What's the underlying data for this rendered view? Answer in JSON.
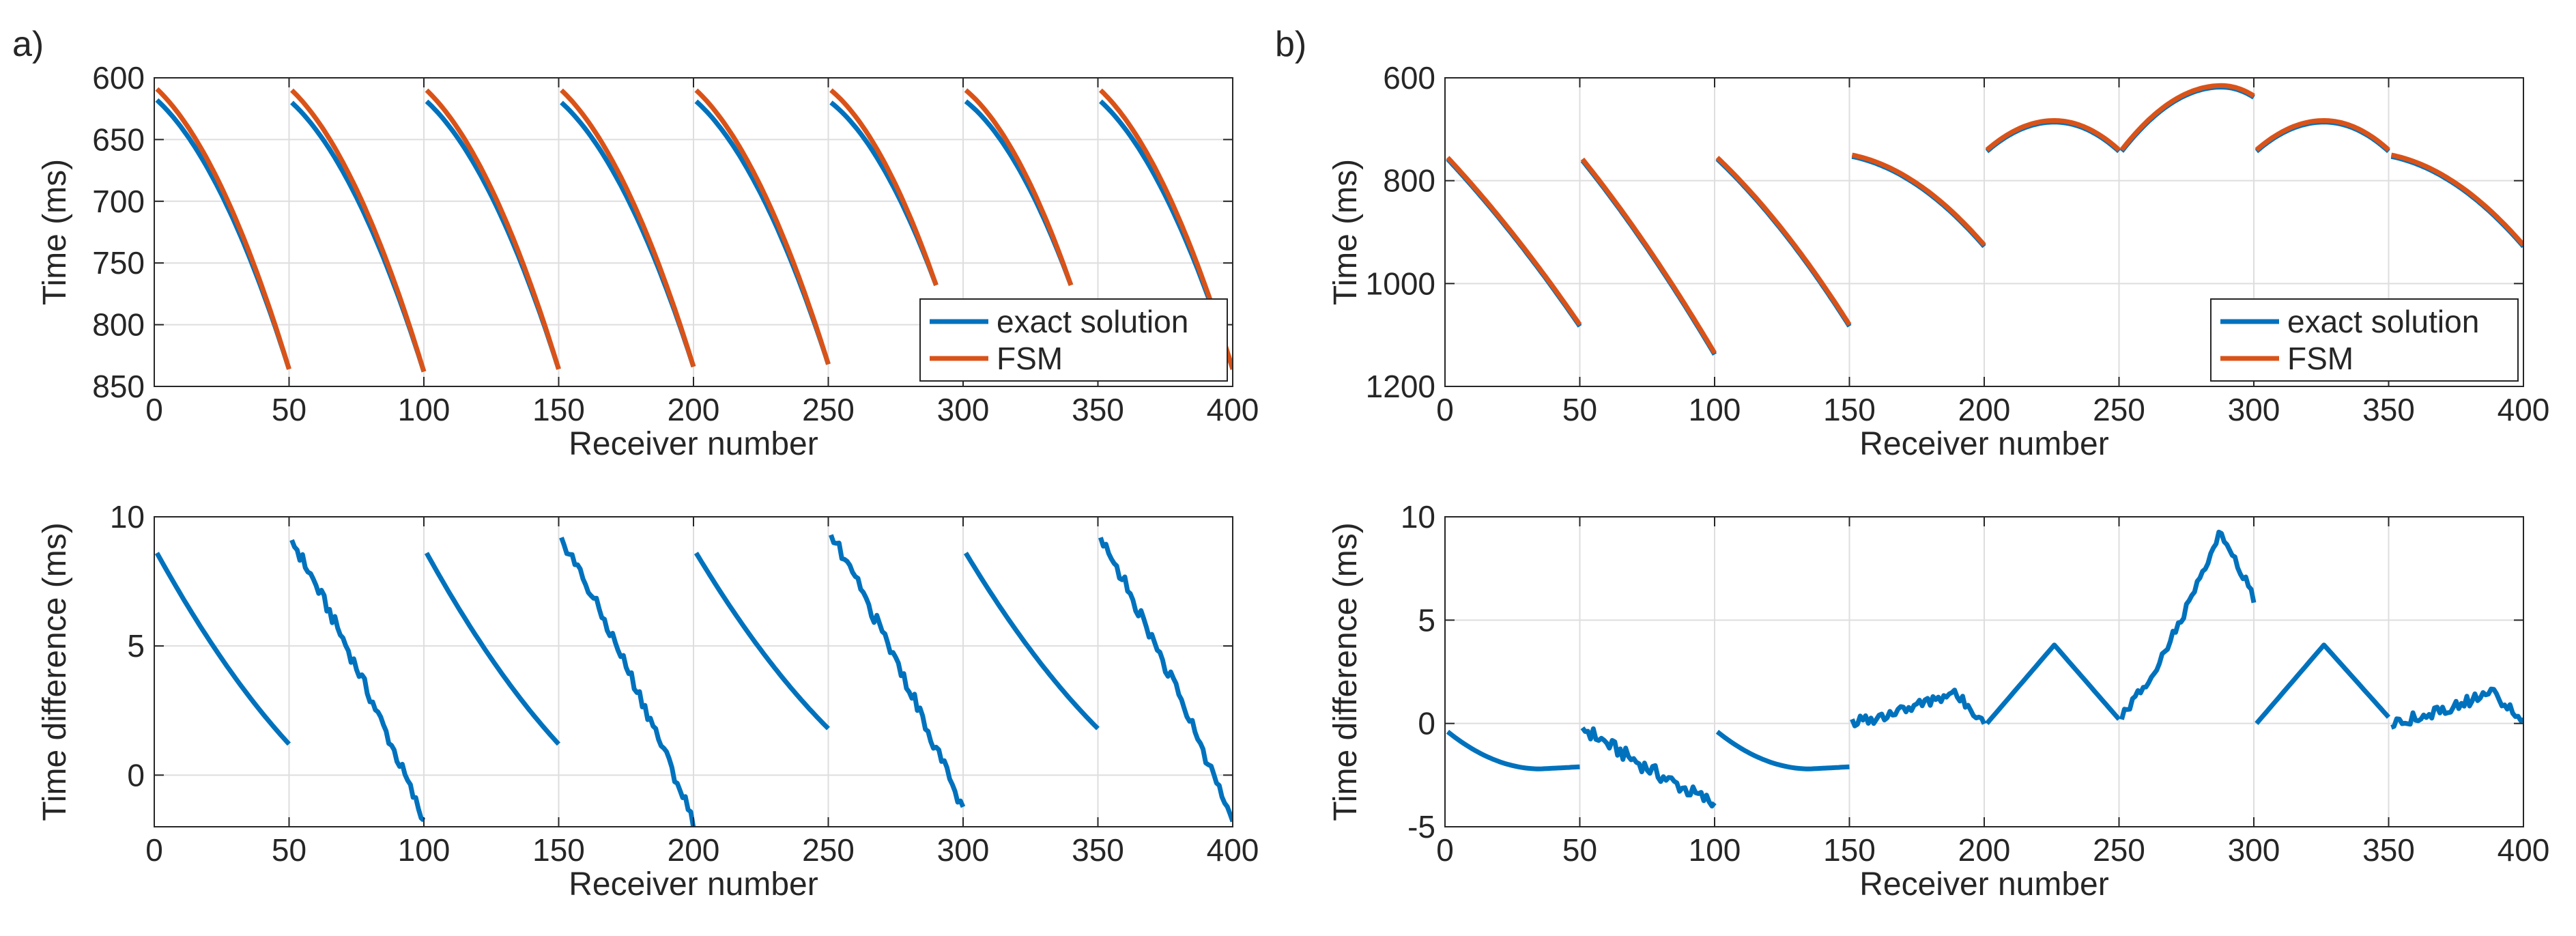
{
  "panel_labels": [
    "a)",
    "b)"
  ],
  "legend": {
    "entries": [
      "exact solution",
      "FSM"
    ]
  },
  "colors": {
    "exact": "#0072bd",
    "fsm": "#d95319",
    "grid": "#dedede",
    "axis": "#262626"
  },
  "chart_data": [
    {
      "id": "a_top",
      "type": "line",
      "xlabel": "Receiver number",
      "ylabel": "Time (ms)",
      "xlim": [
        0,
        400
      ],
      "ylim": [
        600,
        850
      ],
      "y_reversed": true,
      "xticks": [
        0,
        50,
        100,
        150,
        200,
        250,
        300,
        350,
        400
      ],
      "yticks": [
        600,
        650,
        700,
        750,
        800,
        850
      ],
      "grid": true,
      "legend_position": "bottom-right",
      "segments": [
        {
          "x0": 1,
          "x1": 50,
          "exact": [
            618,
            836
          ],
          "fsm": [
            609,
            836
          ]
        },
        {
          "x0": 51,
          "x1": 100,
          "exact": [
            620,
            838
          ],
          "fsm": [
            610,
            838
          ]
        },
        {
          "x0": 101,
          "x1": 150,
          "exact": [
            619,
            836
          ],
          "fsm": [
            610,
            836
          ]
        },
        {
          "x0": 151,
          "x1": 200,
          "exact": [
            620,
            834
          ],
          "fsm": [
            610,
            834
          ]
        },
        {
          "x0": 201,
          "x1": 250,
          "exact": [
            619,
            832
          ],
          "fsm": [
            610,
            832
          ]
        },
        {
          "x0": 251,
          "x1": 290,
          "exact": [
            620,
            768
          ],
          "fsm": [
            610,
            768
          ]
        },
        {
          "x0": 301,
          "x1": 340,
          "exact": [
            619,
            768
          ],
          "fsm": [
            610,
            768
          ]
        },
        {
          "x0": 351,
          "x1": 400,
          "exact": [
            619,
            836
          ],
          "fsm": [
            610,
            836
          ]
        }
      ]
    },
    {
      "id": "a_bottom",
      "type": "line",
      "xlabel": "Receiver number",
      "ylabel": "Time difference (ms)",
      "xlim": [
        0,
        400
      ],
      "ylim": [
        -2,
        10
      ],
      "y_reversed": false,
      "xticks": [
        0,
        50,
        100,
        150,
        200,
        250,
        300,
        350,
        400
      ],
      "yticks": [
        0,
        5,
        10
      ],
      "grid": true,
      "segments": [
        {
          "x0": 1,
          "x1": 50,
          "y0": 8.6,
          "y1": 1.2,
          "shape": "smooth"
        },
        {
          "x0": 51,
          "x1": 100,
          "y0": 9.1,
          "y1": -1.8,
          "shape": "noisy"
        },
        {
          "x0": 101,
          "x1": 150,
          "y0": 8.6,
          "y1": 1.2,
          "shape": "smooth"
        },
        {
          "x0": 151,
          "x1": 200,
          "y0": 9.2,
          "y1": -1.8,
          "shape": "noisy"
        },
        {
          "x0": 201,
          "x1": 250,
          "y0": 8.6,
          "y1": 1.8,
          "shape": "smooth"
        },
        {
          "x0": 251,
          "x1": 300,
          "y0": 9.3,
          "y1": -1.4,
          "shape": "noisy"
        },
        {
          "x0": 301,
          "x1": 350,
          "y0": 8.6,
          "y1": 1.8,
          "shape": "smooth"
        },
        {
          "x0": 351,
          "x1": 400,
          "y0": 9.2,
          "y1": -1.8,
          "shape": "noisy"
        }
      ]
    },
    {
      "id": "b_top",
      "type": "line",
      "xlabel": "Receiver number",
      "ylabel": "Time (ms)",
      "xlim": [
        0,
        400
      ],
      "ylim": [
        600,
        1200
      ],
      "y_reversed": true,
      "xticks": [
        0,
        50,
        100,
        150,
        200,
        250,
        300,
        350,
        400
      ],
      "yticks": [
        600,
        800,
        1000,
        1200
      ],
      "grid": true,
      "legend_position": "bottom-right",
      "segments": [
        {
          "x0": 1,
          "x1": 50,
          "y0": 755,
          "y1": 1080,
          "curv": 0.15
        },
        {
          "x0": 51,
          "x1": 100,
          "y0": 758,
          "y1": 1135,
          "curv": 0.15
        },
        {
          "x0": 101,
          "x1": 150,
          "y0": 755,
          "y1": 1080,
          "curv": 0.25
        },
        {
          "x0": 151,
          "x1": 200,
          "y0": 750,
          "y1": 925,
          "curv": 0.7
        },
        {
          "x0": 201,
          "x1": 250,
          "y0": 740,
          "y1": 740,
          "peak": 683,
          "px": 226
        },
        {
          "x0": 251,
          "x1": 300,
          "y0": 740,
          "y1": 635,
          "peak": 615,
          "px": 288
        },
        {
          "x0": 301,
          "x1": 350,
          "y0": 740,
          "y1": 740,
          "peak": 683,
          "px": 326
        },
        {
          "x0": 351,
          "x1": 400,
          "y0": 750,
          "y1": 925,
          "curv": 0.7
        }
      ]
    },
    {
      "id": "b_bottom",
      "type": "line",
      "xlabel": "Receiver number",
      "ylabel": "Time difference (ms)",
      "xlim": [
        0,
        400
      ],
      "ylim": [
        -5,
        10
      ],
      "y_reversed": false,
      "xticks": [
        0,
        50,
        100,
        150,
        200,
        250,
        300,
        350,
        400
      ],
      "yticks": [
        -5,
        0,
        5,
        10
      ],
      "grid": true,
      "segments": [
        {
          "x0": 1,
          "x1": 50,
          "kind": "dip",
          "y0": -0.4,
          "y1": -2.1,
          "ymin": -2.2
        },
        {
          "x0": 51,
          "x1": 100,
          "kind": "noisylin",
          "y0": -0.2,
          "y1": -3.9
        },
        {
          "x0": 101,
          "x1": 150,
          "kind": "dip",
          "y0": -0.4,
          "y1": -2.1,
          "ymin": -2.2
        },
        {
          "x0": 151,
          "x1": 200,
          "kind": "noisypeak",
          "y0": 0.0,
          "y1": 0.2,
          "peak": 1.5,
          "px": 188
        },
        {
          "x0": 201,
          "x1": 250,
          "kind": "tri",
          "y0": 0.0,
          "y1": 0.2,
          "peak": 3.8,
          "px": 226
        },
        {
          "x0": 251,
          "x1": 300,
          "kind": "noisypeak",
          "y0": 0.3,
          "y1": 6.0,
          "peak": 9.3,
          "px": 288
        },
        {
          "x0": 301,
          "x1": 350,
          "kind": "tri",
          "y0": 0.0,
          "y1": 0.3,
          "peak": 3.8,
          "px": 326
        },
        {
          "x0": 351,
          "x1": 400,
          "kind": "noisypeak",
          "y0": 0.0,
          "y1": 0.1,
          "peak": 1.5,
          "px": 388
        }
      ]
    }
  ]
}
